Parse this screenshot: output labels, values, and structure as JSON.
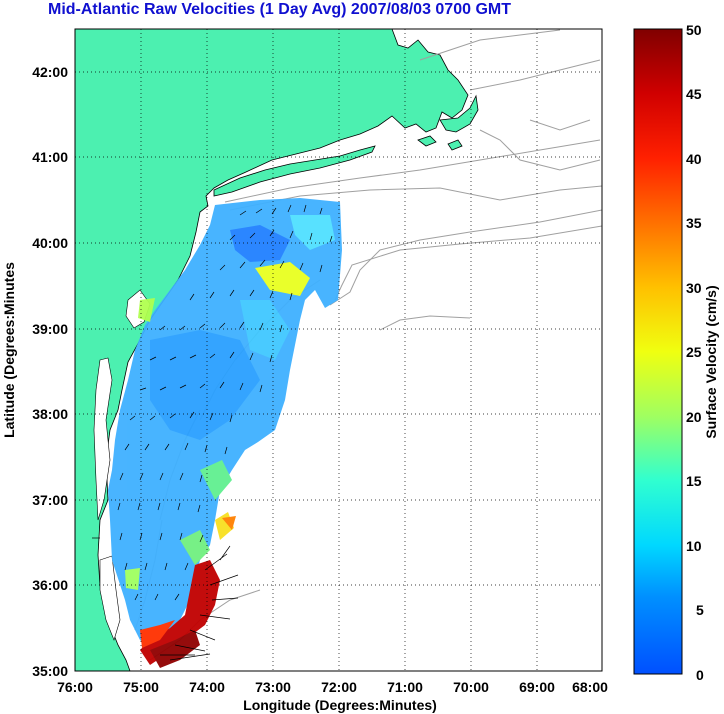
{
  "title": "Mid-Atlantic Raw Velocities (1 Day Avg) 2007/08/03 0700 GMT",
  "xlabel": "Longitude (Degrees:Minutes)",
  "ylabel": "Latitude (Degrees:Minutes",
  "colorbar_label": "Surface Velocity (cm/s)",
  "x_ticks": [
    "76:00",
    "75:00",
    "74:00",
    "73:00",
    "72:00",
    "71:00",
    "70:00",
    "69:00",
    "68:00"
  ],
  "y_ticks": [
    "42:00",
    "41:00",
    "40:00",
    "39:00",
    "38:00",
    "37:00",
    "36:00",
    "35:00"
  ],
  "colorbar_ticks": [
    "50",
    "45",
    "40",
    "35",
    "30",
    "25",
    "20",
    "15",
    "10",
    "5",
    "0"
  ],
  "colors": {
    "land": "#4cf0b0",
    "title": "#1010d0",
    "grid": "#000000",
    "isobath": "#a0a0a0"
  },
  "extent": {
    "lon": [
      -76,
      -68
    ],
    "lat": [
      35,
      42.5
    ]
  }
}
